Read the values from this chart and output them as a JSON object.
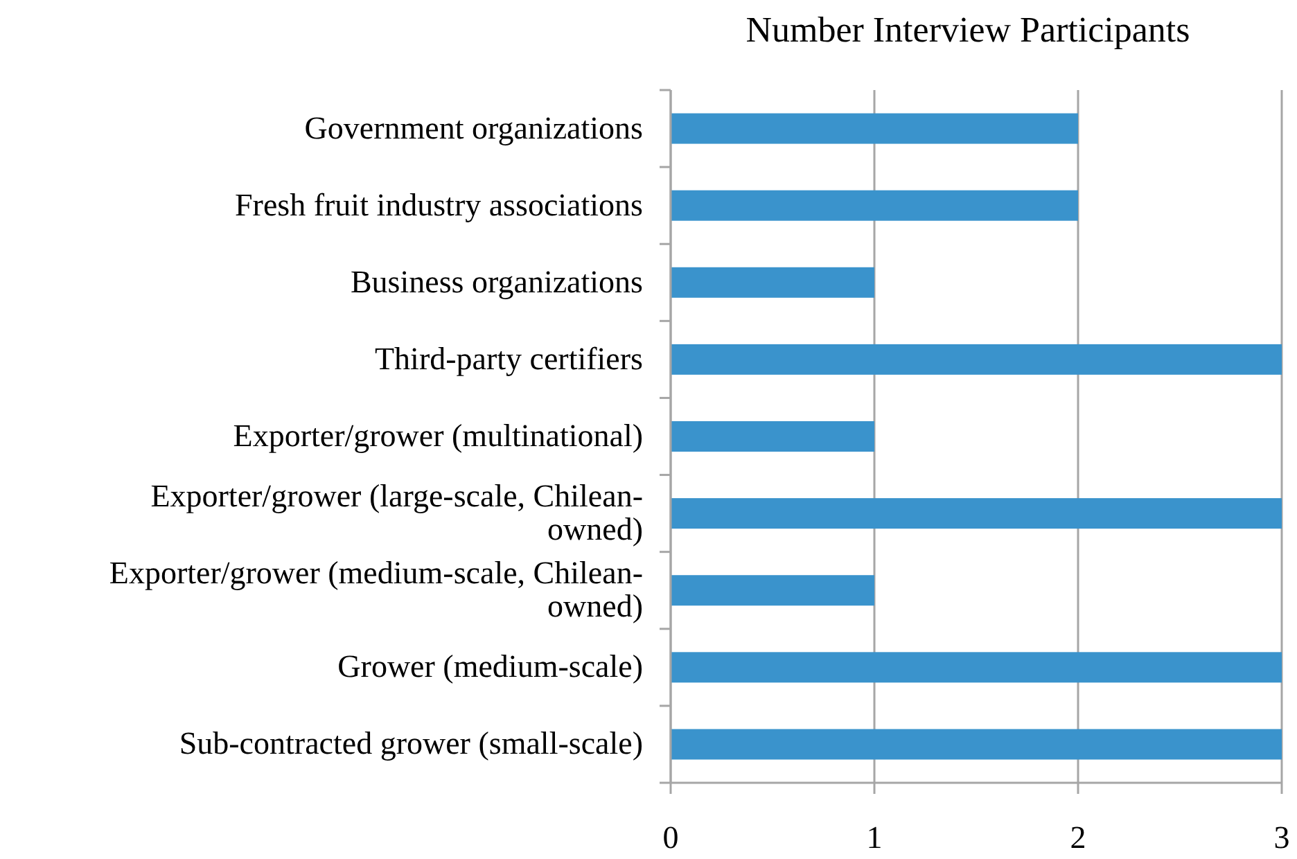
{
  "chart_data": {
    "type": "bar",
    "orientation": "horizontal",
    "title": "Number Interview Participants",
    "categories": [
      "Government organizations",
      "Fresh fruit industry associations",
      "Business organizations",
      "Third-party certifiers",
      "Exporter/grower (multinational)",
      "Exporter/grower (large-scale, Chilean-owned)",
      "Exporter/grower (medium-scale, Chilean-owned)",
      "Grower (medium-scale)",
      "Sub-contracted grower (small-scale)"
    ],
    "values": [
      2,
      2,
      1,
      3,
      1,
      3,
      1,
      3,
      3
    ],
    "color": "#3a93cc",
    "xlim": [
      0,
      3
    ],
    "xticks": [
      0,
      1,
      2,
      3
    ],
    "grid": "x"
  }
}
